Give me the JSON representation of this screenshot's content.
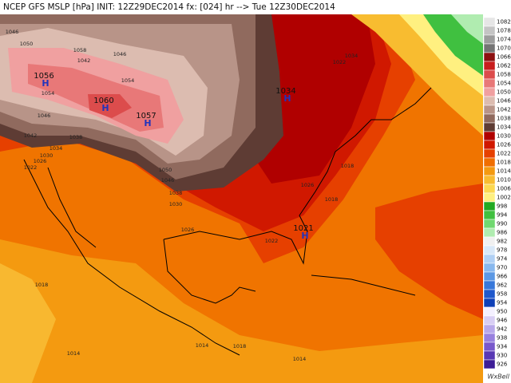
{
  "title": "NCEP GFS MSLP [hPa] INIT: 12Z29DEC2014 fx: [024] hr --> Tue 12Z30DEC2014",
  "credit": "WxBell",
  "colorbar": {
    "labels": [
      1082,
      1078,
      1074,
      1070,
      1066,
      1062,
      1058,
      1054,
      1050,
      1046,
      1042,
      1038,
      1034,
      1030,
      1026,
      1022,
      1018,
      1014,
      1010,
      1006,
      1002,
      998,
      994,
      990,
      986,
      982,
      978,
      974,
      970,
      966,
      962,
      958,
      954,
      950,
      946,
      942,
      938,
      934,
      930,
      926
    ],
    "colors": [
      "#e6e6e6",
      "#c4c4c4",
      "#9c9c9c",
      "#747474",
      "#8c1010",
      "#c81e1e",
      "#dc4c4c",
      "#e87878",
      "#f0a0a0",
      "#dcbcb0",
      "#b89488",
      "#906a5e",
      "#5e3c34",
      "#b00000",
      "#d01800",
      "#e64000",
      "#f06e00",
      "#f49a10",
      "#f8bc30",
      "#fcd850",
      "#fff080",
      "#22aa22",
      "#40c040",
      "#70d870",
      "#b0ecb0",
      "#f0f0f0",
      "#d8e8f8",
      "#b0d0f4",
      "#88b8ee",
      "#5c98e4",
      "#3878da",
      "#2058cc",
      "#1040b8",
      "#f4f0ff",
      "#d8cef4",
      "#b8a8ea",
      "#9880de",
      "#7858cc",
      "#5838b4",
      "#3c1c96"
    ]
  },
  "highs": [
    {
      "value": "1056",
      "symbol": "H"
    },
    {
      "value": "1060",
      "symbol": "H"
    },
    {
      "value": "1057",
      "symbol": "H"
    },
    {
      "value": "1034",
      "symbol": "H"
    },
    {
      "value": "1021",
      "symbol": "H"
    }
  ],
  "contour_labels": [
    "1046",
    "1050",
    "1058",
    "1042",
    "1046",
    "1054",
    "1054",
    "1046",
    "1042",
    "1038",
    "1034",
    "1030",
    "1026",
    "1022",
    "1050",
    "1046",
    "1038",
    "1030",
    "1026",
    "1022",
    "1018",
    "1026",
    "1018",
    "1022",
    "1034",
    "1018",
    "1014",
    "1014",
    "1018",
    "1014"
  ]
}
